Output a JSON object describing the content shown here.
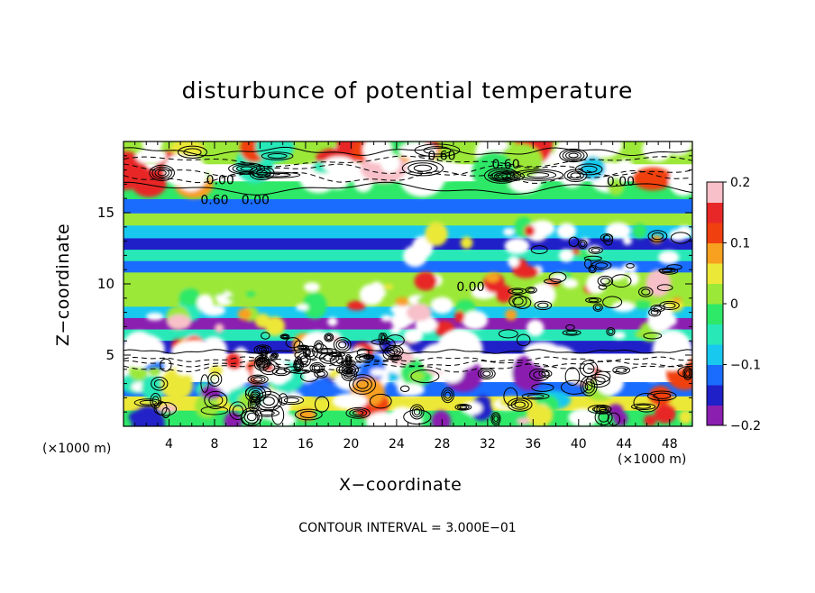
{
  "chart_data": {
    "type": "heatmap",
    "title": "disturbunce of potential temperature",
    "xlabel": "X−coordinate",
    "ylabel": "Z−coordinate",
    "x_unit_label": "(×1000 m)",
    "x_ticks": [
      4,
      8,
      12,
      16,
      20,
      24,
      28,
      32,
      36,
      40,
      44,
      48
    ],
    "y_ticks": [
      5,
      10,
      15
    ],
    "xlim": [
      0,
      50
    ],
    "ylim": [
      0,
      20
    ],
    "colorbar": {
      "ticks": [
        0.2,
        0.1,
        0,
        -0.1,
        -0.2
      ],
      "tick_labels": [
        "0.2",
        "0.1",
        "0",
        "−0.1",
        "−0.2"
      ],
      "range": [
        -0.2,
        0.2
      ],
      "colors": [
        "#8a1fb0",
        "#2020c8",
        "#1a6cff",
        "#18c8ee",
        "#28e8b8",
        "#2ee868",
        "#9ce838",
        "#ece838",
        "#f8a020",
        "#f04010",
        "#e82828",
        "#f8c0c8"
      ]
    },
    "contour_labels": [
      {
        "text": "−0.60",
        "x": 27.5,
        "y": 18.7
      },
      {
        "text": "0.60",
        "x": 33.6,
        "y": 18.1
      },
      {
        "text": "0.00",
        "x": 8.5,
        "y": 17.0
      },
      {
        "text": "0.00",
        "x": 43.7,
        "y": 16.9
      },
      {
        "text": "0.60",
        "x": 8.0,
        "y": 15.6
      },
      {
        "text": "0.00",
        "x": 11.6,
        "y": 15.6
      },
      {
        "text": "0.00",
        "x": 30.5,
        "y": 9.5
      }
    ],
    "contour_interval_text": "CONTOUR INTERVAL =  3.000E−01",
    "bands": [
      {
        "z": 19.0,
        "value": 0.0
      },
      {
        "z": 17.8,
        "value": 0.3
      },
      {
        "z": 16.6,
        "value": -0.02
      },
      {
        "z": 15.3,
        "value": -0.12
      },
      {
        "z": 14.6,
        "value": 0.0
      },
      {
        "z": 13.6,
        "value": -0.07
      },
      {
        "z": 12.8,
        "value": -0.16
      },
      {
        "z": 12.0,
        "value": -0.04
      },
      {
        "z": 11.2,
        "value": -0.12
      },
      {
        "z": 10.4,
        "value": 0.0
      },
      {
        "z": 9.6,
        "value": 0.02
      },
      {
        "z": 8.8,
        "value": 0.0
      },
      {
        "z": 8.0,
        "value": -0.08
      },
      {
        "z": 7.2,
        "value": -0.17
      },
      {
        "z": 6.4,
        "value": -0.05
      },
      {
        "z": 5.6,
        "value": -0.14
      },
      {
        "z": 4.6,
        "value": 0.3
      },
      {
        "z": 3.6,
        "value": 0.25
      },
      {
        "z": 2.6,
        "value": -0.12
      },
      {
        "z": 1.6,
        "value": 0.06
      },
      {
        "z": 0.6,
        "value": -0.02
      }
    ]
  }
}
